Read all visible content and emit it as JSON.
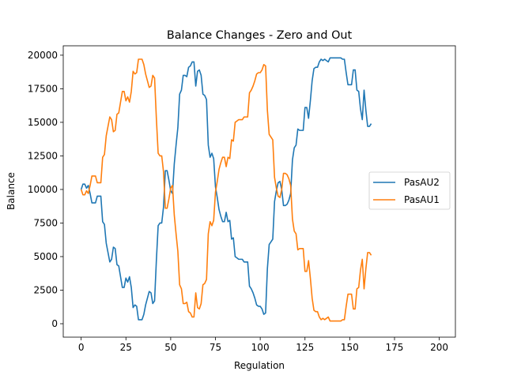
{
  "chart_data": {
    "type": "line",
    "title": "Balance Changes - Zero and Out",
    "xlabel": "Regulation",
    "ylabel": "Balance",
    "xlim": [
      -10,
      209
    ],
    "ylim": [
      -1000,
      20700
    ],
    "xticks": [
      0,
      25,
      50,
      75,
      100,
      125,
      150,
      175,
      200
    ],
    "yticks": [
      0,
      2500,
      5000,
      7500,
      10000,
      12500,
      15000,
      17500,
      20000
    ],
    "grid": false,
    "legend": "center-right",
    "series": [
      {
        "name": "PasAU2",
        "color": "#1f77b4",
        "points": [
          [
            0,
            10000
          ],
          [
            1,
            10400
          ],
          [
            2,
            10400
          ],
          [
            3,
            10100
          ],
          [
            4,
            10300
          ],
          [
            5,
            9700
          ],
          [
            6,
            9000
          ],
          [
            7,
            9000
          ],
          [
            8,
            9000
          ],
          [
            9,
            9500
          ],
          [
            10,
            9500
          ],
          [
            11,
            9500
          ],
          [
            12,
            7600
          ],
          [
            13,
            7400
          ],
          [
            14,
            6000
          ],
          [
            15,
            5300
          ],
          [
            16,
            4600
          ],
          [
            17,
            4800
          ],
          [
            18,
            5700
          ],
          [
            19,
            5600
          ],
          [
            20,
            4400
          ],
          [
            21,
            4300
          ],
          [
            22,
            3500
          ],
          [
            23,
            2700
          ],
          [
            24,
            2700
          ],
          [
            25,
            3400
          ],
          [
            26,
            3100
          ],
          [
            27,
            3500
          ],
          [
            28,
            2700
          ],
          [
            29,
            1200
          ],
          [
            30,
            1400
          ],
          [
            31,
            1300
          ],
          [
            32,
            300
          ],
          [
            33,
            300
          ],
          [
            34,
            300
          ],
          [
            35,
            700
          ],
          [
            36,
            1400
          ],
          [
            37,
            1900
          ],
          [
            38,
            2400
          ],
          [
            39,
            2300
          ],
          [
            40,
            1500
          ],
          [
            41,
            1700
          ],
          [
            42,
            4700
          ],
          [
            43,
            7300
          ],
          [
            44,
            7500
          ],
          [
            45,
            7500
          ],
          [
            46,
            8700
          ],
          [
            47,
            11400
          ],
          [
            48,
            11400
          ],
          [
            49,
            10700
          ],
          [
            50,
            9900
          ],
          [
            51,
            9700
          ],
          [
            52,
            11900
          ],
          [
            53,
            13300
          ],
          [
            54,
            14600
          ],
          [
            55,
            17100
          ],
          [
            56,
            17400
          ],
          [
            57,
            18500
          ],
          [
            58,
            18500
          ],
          [
            59,
            18400
          ],
          [
            60,
            19100
          ],
          [
            61,
            19200
          ],
          [
            62,
            19500
          ],
          [
            63,
            19500
          ],
          [
            64,
            17700
          ],
          [
            65,
            18800
          ],
          [
            66,
            18900
          ],
          [
            67,
            18500
          ],
          [
            68,
            17100
          ],
          [
            69,
            17000
          ],
          [
            70,
            16700
          ],
          [
            71,
            13300
          ],
          [
            72,
            12400
          ],
          [
            73,
            12700
          ],
          [
            74,
            12300
          ],
          [
            75,
            10200
          ],
          [
            76,
            9400
          ],
          [
            77,
            8500
          ],
          [
            78,
            8000
          ],
          [
            79,
            7600
          ],
          [
            80,
            7600
          ],
          [
            81,
            8300
          ],
          [
            82,
            7600
          ],
          [
            83,
            7700
          ],
          [
            84,
            6300
          ],
          [
            85,
            6400
          ],
          [
            86,
            5000
          ],
          [
            87,
            4900
          ],
          [
            88,
            4800
          ],
          [
            89,
            4800
          ],
          [
            90,
            4800
          ],
          [
            91,
            4600
          ],
          [
            92,
            4600
          ],
          [
            93,
            4600
          ],
          [
            94,
            2800
          ],
          [
            95,
            2600
          ],
          [
            96,
            2300
          ],
          [
            97,
            1900
          ],
          [
            98,
            1400
          ],
          [
            99,
            1300
          ],
          [
            100,
            1300
          ],
          [
            101,
            1100
          ],
          [
            102,
            700
          ],
          [
            103,
            800
          ],
          [
            104,
            4100
          ],
          [
            105,
            5900
          ],
          [
            106,
            6100
          ],
          [
            107,
            6300
          ],
          [
            108,
            9100
          ],
          [
            109,
            9900
          ],
          [
            110,
            10500
          ],
          [
            111,
            10600
          ],
          [
            112,
            10000
          ],
          [
            113,
            8800
          ],
          [
            114,
            8800
          ],
          [
            115,
            8900
          ],
          [
            116,
            9200
          ],
          [
            117,
            9700
          ],
          [
            118,
            12200
          ],
          [
            119,
            13100
          ],
          [
            120,
            13300
          ],
          [
            121,
            14500
          ],
          [
            122,
            14400
          ],
          [
            123,
            14400
          ],
          [
            124,
            14400
          ],
          [
            125,
            16100
          ],
          [
            126,
            16100
          ],
          [
            127,
            15300
          ],
          [
            128,
            16600
          ],
          [
            129,
            18100
          ],
          [
            130,
            19000
          ],
          [
            131,
            19100
          ],
          [
            132,
            19100
          ],
          [
            133,
            19500
          ],
          [
            134,
            19700
          ],
          [
            135,
            19600
          ],
          [
            136,
            19700
          ],
          [
            137,
            19600
          ],
          [
            138,
            19500
          ],
          [
            139,
            19800
          ],
          [
            140,
            19800
          ],
          [
            141,
            19800
          ],
          [
            142,
            19800
          ],
          [
            143,
            19800
          ],
          [
            144,
            19800
          ],
          [
            145,
            19800
          ],
          [
            146,
            19700
          ],
          [
            147,
            19700
          ],
          [
            148,
            18700
          ],
          [
            149,
            17800
          ],
          [
            150,
            17800
          ],
          [
            151,
            17800
          ],
          [
            152,
            18900
          ],
          [
            153,
            18900
          ],
          [
            154,
            17400
          ],
          [
            155,
            17300
          ],
          [
            156,
            16000
          ],
          [
            157,
            15200
          ],
          [
            158,
            17400
          ],
          [
            159,
            15900
          ],
          [
            160,
            14700
          ],
          [
            161,
            14700
          ],
          [
            162,
            14900
          ]
        ]
      },
      {
        "name": "PasAU1",
        "color": "#ff7f0e",
        "points": [
          [
            0,
            10000
          ],
          [
            1,
            9600
          ],
          [
            2,
            9600
          ],
          [
            3,
            9900
          ],
          [
            4,
            9700
          ],
          [
            5,
            10300
          ],
          [
            6,
            11000
          ],
          [
            7,
            11000
          ],
          [
            8,
            11000
          ],
          [
            9,
            10500
          ],
          [
            10,
            10500
          ],
          [
            11,
            10500
          ],
          [
            12,
            12400
          ],
          [
            13,
            12600
          ],
          [
            14,
            14000
          ],
          [
            15,
            14700
          ],
          [
            16,
            15400
          ],
          [
            17,
            15200
          ],
          [
            18,
            14300
          ],
          [
            19,
            14400
          ],
          [
            20,
            15600
          ],
          [
            21,
            15700
          ],
          [
            22,
            16500
          ],
          [
            23,
            17300
          ],
          [
            24,
            17300
          ],
          [
            25,
            16600
          ],
          [
            26,
            16900
          ],
          [
            27,
            16500
          ],
          [
            28,
            17300
          ],
          [
            29,
            18800
          ],
          [
            30,
            18600
          ],
          [
            31,
            18700
          ],
          [
            32,
            19700
          ],
          [
            33,
            19700
          ],
          [
            34,
            19700
          ],
          [
            35,
            19300
          ],
          [
            36,
            18600
          ],
          [
            37,
            18100
          ],
          [
            38,
            17600
          ],
          [
            39,
            17700
          ],
          [
            40,
            18500
          ],
          [
            41,
            18300
          ],
          [
            42,
            15300
          ],
          [
            43,
            12700
          ],
          [
            44,
            12500
          ],
          [
            45,
            12500
          ],
          [
            46,
            11300
          ],
          [
            47,
            8600
          ],
          [
            48,
            8600
          ],
          [
            49,
            9300
          ],
          [
            50,
            10100
          ],
          [
            51,
            10300
          ],
          [
            52,
            8100
          ],
          [
            53,
            6700
          ],
          [
            54,
            5400
          ],
          [
            55,
            2900
          ],
          [
            56,
            2600
          ],
          [
            57,
            1500
          ],
          [
            58,
            1500
          ],
          [
            59,
            1600
          ],
          [
            60,
            900
          ],
          [
            61,
            800
          ],
          [
            62,
            500
          ],
          [
            63,
            500
          ],
          [
            64,
            2300
          ],
          [
            65,
            1200
          ],
          [
            66,
            1100
          ],
          [
            67,
            1500
          ],
          [
            68,
            2900
          ],
          [
            69,
            3000
          ],
          [
            70,
            3300
          ],
          [
            71,
            6700
          ],
          [
            72,
            7600
          ],
          [
            73,
            7300
          ],
          [
            74,
            7700
          ],
          [
            75,
            9800
          ],
          [
            76,
            10600
          ],
          [
            77,
            11500
          ],
          [
            78,
            12000
          ],
          [
            79,
            12400
          ],
          [
            80,
            12400
          ],
          [
            81,
            11700
          ],
          [
            82,
            12400
          ],
          [
            83,
            12300
          ],
          [
            84,
            13700
          ],
          [
            85,
            13600
          ],
          [
            86,
            15000
          ],
          [
            87,
            15100
          ],
          [
            88,
            15200
          ],
          [
            89,
            15200
          ],
          [
            90,
            15200
          ],
          [
            91,
            15400
          ],
          [
            92,
            15400
          ],
          [
            93,
            15400
          ],
          [
            94,
            17200
          ],
          [
            95,
            17400
          ],
          [
            96,
            17700
          ],
          [
            97,
            18100
          ],
          [
            98,
            18600
          ],
          [
            99,
            18700
          ],
          [
            100,
            18700
          ],
          [
            101,
            18900
          ],
          [
            102,
            19300
          ],
          [
            103,
            19200
          ],
          [
            104,
            15900
          ],
          [
            105,
            14100
          ],
          [
            106,
            13900
          ],
          [
            107,
            13700
          ],
          [
            108,
            10900
          ],
          [
            109,
            10100
          ],
          [
            110,
            9500
          ],
          [
            111,
            9400
          ],
          [
            112,
            10000
          ],
          [
            113,
            11200
          ],
          [
            114,
            11200
          ],
          [
            115,
            11100
          ],
          [
            116,
            10800
          ],
          [
            117,
            10300
          ],
          [
            118,
            7800
          ],
          [
            119,
            6900
          ],
          [
            120,
            6700
          ],
          [
            121,
            5500
          ],
          [
            122,
            5600
          ],
          [
            123,
            5600
          ],
          [
            124,
            5600
          ],
          [
            125,
            3900
          ],
          [
            126,
            3900
          ],
          [
            127,
            4700
          ],
          [
            128,
            3400
          ],
          [
            129,
            1900
          ],
          [
            130,
            1000
          ],
          [
            131,
            900
          ],
          [
            132,
            900
          ],
          [
            133,
            500
          ],
          [
            134,
            300
          ],
          [
            135,
            400
          ],
          [
            136,
            300
          ],
          [
            137,
            400
          ],
          [
            138,
            500
          ],
          [
            139,
            200
          ],
          [
            140,
            200
          ],
          [
            141,
            200
          ],
          [
            142,
            200
          ],
          [
            143,
            200
          ],
          [
            144,
            200
          ],
          [
            145,
            200
          ],
          [
            146,
            300
          ],
          [
            147,
            300
          ],
          [
            148,
            1300
          ],
          [
            149,
            2200
          ],
          [
            150,
            2200
          ],
          [
            151,
            2200
          ],
          [
            152,
            1100
          ],
          [
            153,
            1100
          ],
          [
            154,
            2600
          ],
          [
            155,
            2700
          ],
          [
            156,
            4000
          ],
          [
            157,
            4800
          ],
          [
            158,
            2600
          ],
          [
            159,
            4100
          ],
          [
            160,
            5300
          ],
          [
            161,
            5300
          ],
          [
            162,
            5100
          ]
        ]
      }
    ]
  }
}
